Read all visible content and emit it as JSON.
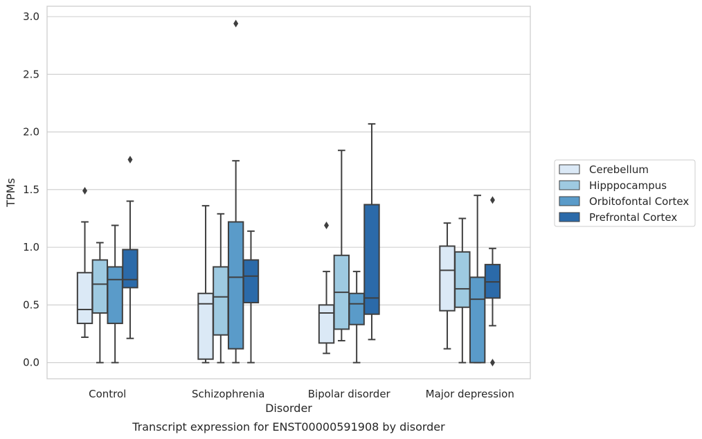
{
  "chart_data": {
    "type": "boxplot",
    "title": "",
    "caption": "Transcript expression for ENST00000591908 by disorder",
    "xlabel": "Disorder",
    "ylabel": "TPMs",
    "ylim": [
      -0.14,
      3.09
    ],
    "yticks": [
      0.0,
      0.5,
      1.0,
      1.5,
      2.0,
      2.5,
      3.0
    ],
    "ytick_labels": [
      "0.0",
      "0.5",
      "1.0",
      "1.5",
      "2.0",
      "2.5",
      "3.0"
    ],
    "grid": "horizontal",
    "legend_position": "right",
    "categories": [
      "Control",
      "Schizophrenia",
      "Bipolar disorder",
      "Major depression"
    ],
    "series": [
      {
        "name": "Cerebellum",
        "color": "#dbe9f6",
        "boxes": [
          {
            "whislo": 0.22,
            "q1": 0.34,
            "med": 0.46,
            "q3": 0.78,
            "whishi": 1.22,
            "fliers": [
              1.49
            ]
          },
          {
            "whislo": 0.0,
            "q1": 0.03,
            "med": 0.51,
            "q3": 0.6,
            "whishi": 1.36,
            "fliers": []
          },
          {
            "whislo": 0.08,
            "q1": 0.17,
            "med": 0.43,
            "q3": 0.5,
            "whishi": 0.79,
            "fliers": [
              1.19
            ]
          },
          {
            "whislo": 0.12,
            "q1": 0.45,
            "med": 0.8,
            "q3": 1.01,
            "whishi": 1.21,
            "fliers": []
          }
        ]
      },
      {
        "name": "Hipppocampus",
        "color": "#9ecae1",
        "boxes": [
          {
            "whislo": 0.0,
            "q1": 0.43,
            "med": 0.68,
            "q3": 0.89,
            "whishi": 1.04,
            "fliers": []
          },
          {
            "whislo": 0.0,
            "q1": 0.24,
            "med": 0.57,
            "q3": 0.83,
            "whishi": 1.29,
            "fliers": []
          },
          {
            "whislo": 0.19,
            "q1": 0.29,
            "med": 0.61,
            "q3": 0.93,
            "whishi": 1.84,
            "fliers": []
          },
          {
            "whislo": 0.0,
            "q1": 0.48,
            "med": 0.64,
            "q3": 0.96,
            "whishi": 1.25,
            "fliers": []
          }
        ]
      },
      {
        "name": "Orbitofontal Cortex",
        "color": "#5a9bc9",
        "boxes": [
          {
            "whislo": 0.0,
            "q1": 0.34,
            "med": 0.72,
            "q3": 0.83,
            "whishi": 1.19,
            "fliers": []
          },
          {
            "whislo": 0.0,
            "q1": 0.12,
            "med": 0.74,
            "q3": 1.22,
            "whishi": 1.75,
            "fliers": [
              2.94
            ]
          },
          {
            "whislo": 0.0,
            "q1": 0.33,
            "med": 0.51,
            "q3": 0.6,
            "whishi": 0.79,
            "fliers": []
          },
          {
            "whislo": 0.0,
            "q1": 0.0,
            "med": 0.55,
            "q3": 0.74,
            "whishi": 1.45,
            "fliers": []
          }
        ]
      },
      {
        "name": "Prefrontal Cortex",
        "color": "#2b6aa9",
        "boxes": [
          {
            "whislo": 0.21,
            "q1": 0.65,
            "med": 0.72,
            "q3": 0.98,
            "whishi": 1.4,
            "fliers": [
              1.76
            ]
          },
          {
            "whislo": 0.0,
            "q1": 0.52,
            "med": 0.75,
            "q3": 0.89,
            "whishi": 1.14,
            "fliers": []
          },
          {
            "whislo": 0.2,
            "q1": 0.42,
            "med": 0.56,
            "q3": 1.37,
            "whishi": 2.07,
            "fliers": []
          },
          {
            "whislo": 0.32,
            "q1": 0.56,
            "med": 0.7,
            "q3": 0.85,
            "whishi": 0.99,
            "fliers": [
              1.41,
              0.0
            ]
          }
        ]
      }
    ]
  }
}
